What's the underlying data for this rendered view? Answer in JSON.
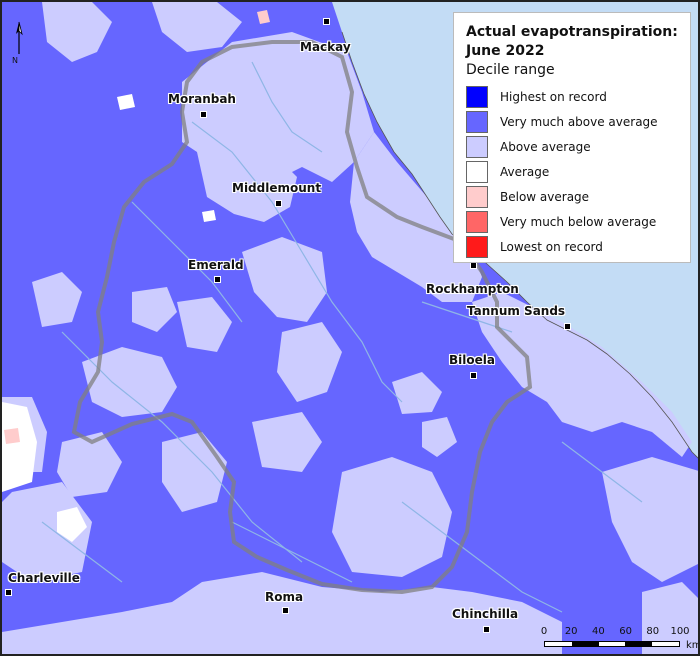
{
  "legend": {
    "title_line1": "Actual evapotranspiration:",
    "title_line2": "June 2022",
    "subtitle": "Decile range",
    "items": [
      {
        "label": "Highest on record",
        "color": "#0000ff"
      },
      {
        "label": "Very much above average",
        "color": "#6666ff"
      },
      {
        "label": "Above average",
        "color": "#ccccff"
      },
      {
        "label": "Average",
        "color": "#ffffff"
      },
      {
        "label": "Below average",
        "color": "#ffcccc"
      },
      {
        "label": "Very much below average",
        "color": "#ff6666"
      },
      {
        "label": "Lowest on record",
        "color": "#ff1a1a"
      }
    ]
  },
  "towns": {
    "mackay": "Mackay",
    "moranbah": "Moranbah",
    "middlemount": "Middlemount",
    "emerald": "Emerald",
    "rockhampton": "Rockhampton",
    "tannum_sands": "Tannum Sands",
    "biloela": "Biloela",
    "charleville": "Charleville",
    "roma": "Roma",
    "chinchilla": "Chinchilla"
  },
  "north_label": "N",
  "scale": {
    "ticks": [
      "0",
      "20",
      "40",
      "60",
      "80",
      "100"
    ],
    "unit": "km"
  },
  "colors": {
    "ocean": "#c3dcf5",
    "very_much_above": "#6666ff",
    "above": "#ccccff",
    "average": "#ffffff",
    "below": "#ffcccc",
    "river": "#8fb6e6",
    "boundary": "#808080"
  }
}
